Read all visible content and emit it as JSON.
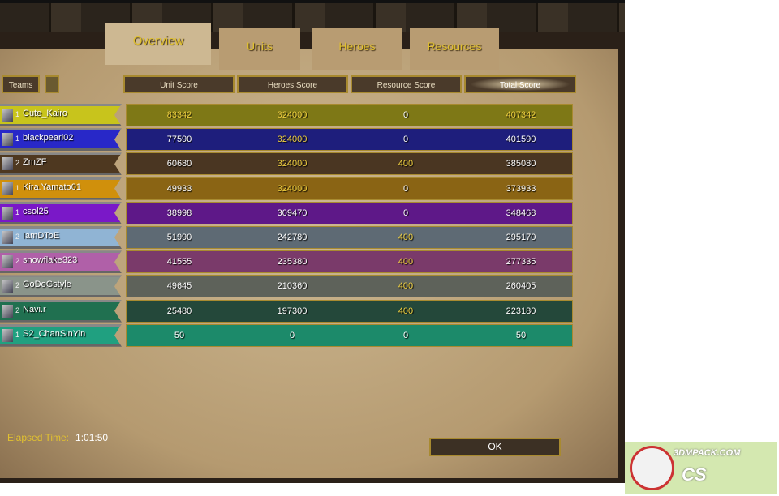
{
  "tabs": [
    {
      "label": "Overview",
      "active": true
    },
    {
      "label": "Units"
    },
    {
      "label": "Heroes"
    },
    {
      "label": "Resources"
    }
  ],
  "header": {
    "teams": "Teams",
    "columns": [
      "Unit Score",
      "Heroes Score",
      "Resource Score",
      "Total Score"
    ],
    "sorted": "Total Score"
  },
  "players": [
    {
      "team": "1",
      "name": "Cute_Kairo",
      "unit": "83342",
      "heroes": "324000",
      "resource": "0",
      "total": "407342",
      "color": "#c8c41c",
      "bg": "#7e7816",
      "hi": [
        1,
        1,
        0,
        1
      ]
    },
    {
      "team": "1",
      "name": "blackpearl02",
      "unit": "77590",
      "heroes": "324000",
      "resource": "0",
      "total": "401590",
      "color": "#2828c8",
      "bg": "#1e1e7c",
      "hi": [
        0,
        1,
        0,
        0
      ]
    },
    {
      "team": "2",
      "name": "ZmZF",
      "unit": "60680",
      "heroes": "324000",
      "resource": "400",
      "total": "385080",
      "color": "#4e3820",
      "bg": "#4a3622",
      "hi": [
        0,
        1,
        1,
        0
      ]
    },
    {
      "team": "1",
      "name": "Kira.Yamato01",
      "unit": "49933",
      "heroes": "324000",
      "resource": "0",
      "total": "373933",
      "color": "#d0900c",
      "bg": "#8a6414",
      "hi": [
        0,
        1,
        0,
        0
      ]
    },
    {
      "team": "1",
      "name": "csol25",
      "unit": "38998",
      "heroes": "309470",
      "resource": "0",
      "total": "348468",
      "color": "#7a18c8",
      "bg": "#5e1888",
      "hi": [
        0,
        0,
        0,
        0
      ]
    },
    {
      "team": "2",
      "name": "IamDToE",
      "unit": "51990",
      "heroes": "242780",
      "resource": "400",
      "total": "295170",
      "color": "#90b4d4",
      "bg": "#5e6a74",
      "hi": [
        0,
        0,
        1,
        0
      ]
    },
    {
      "team": "2",
      "name": "snowflake323",
      "unit": "41555",
      "heroes": "235380",
      "resource": "400",
      "total": "277335",
      "color": "#b060a8",
      "bg": "#7a3a6a",
      "hi": [
        0,
        0,
        1,
        0
      ]
    },
    {
      "team": "2",
      "name": "GoDoGstyle",
      "unit": "49645",
      "heroes": "210360",
      "resource": "400",
      "total": "260405",
      "color": "#8a948a",
      "bg": "#5e625a",
      "hi": [
        0,
        0,
        1,
        0
      ]
    },
    {
      "team": "2",
      "name": "Navi.r",
      "unit": "25480",
      "heroes": "197300",
      "resource": "400",
      "total": "223180",
      "color": "#207050",
      "bg": "#24483a",
      "hi": [
        0,
        0,
        1,
        0
      ]
    },
    {
      "team": "1",
      "name": "S2_ChanSinYin",
      "unit": "50",
      "heroes": "0",
      "resource": "0",
      "total": "50",
      "color": "#20a080",
      "bg": "#1c8a6a",
      "hi": [
        0,
        0,
        0,
        0
      ]
    }
  ],
  "footer": {
    "elapsed_label": "Elapsed Time:",
    "elapsed_value": "1:01:50",
    "ok": "OK"
  },
  "watermark": {
    "site": "3DMPACK.COM",
    "text": "CS"
  }
}
